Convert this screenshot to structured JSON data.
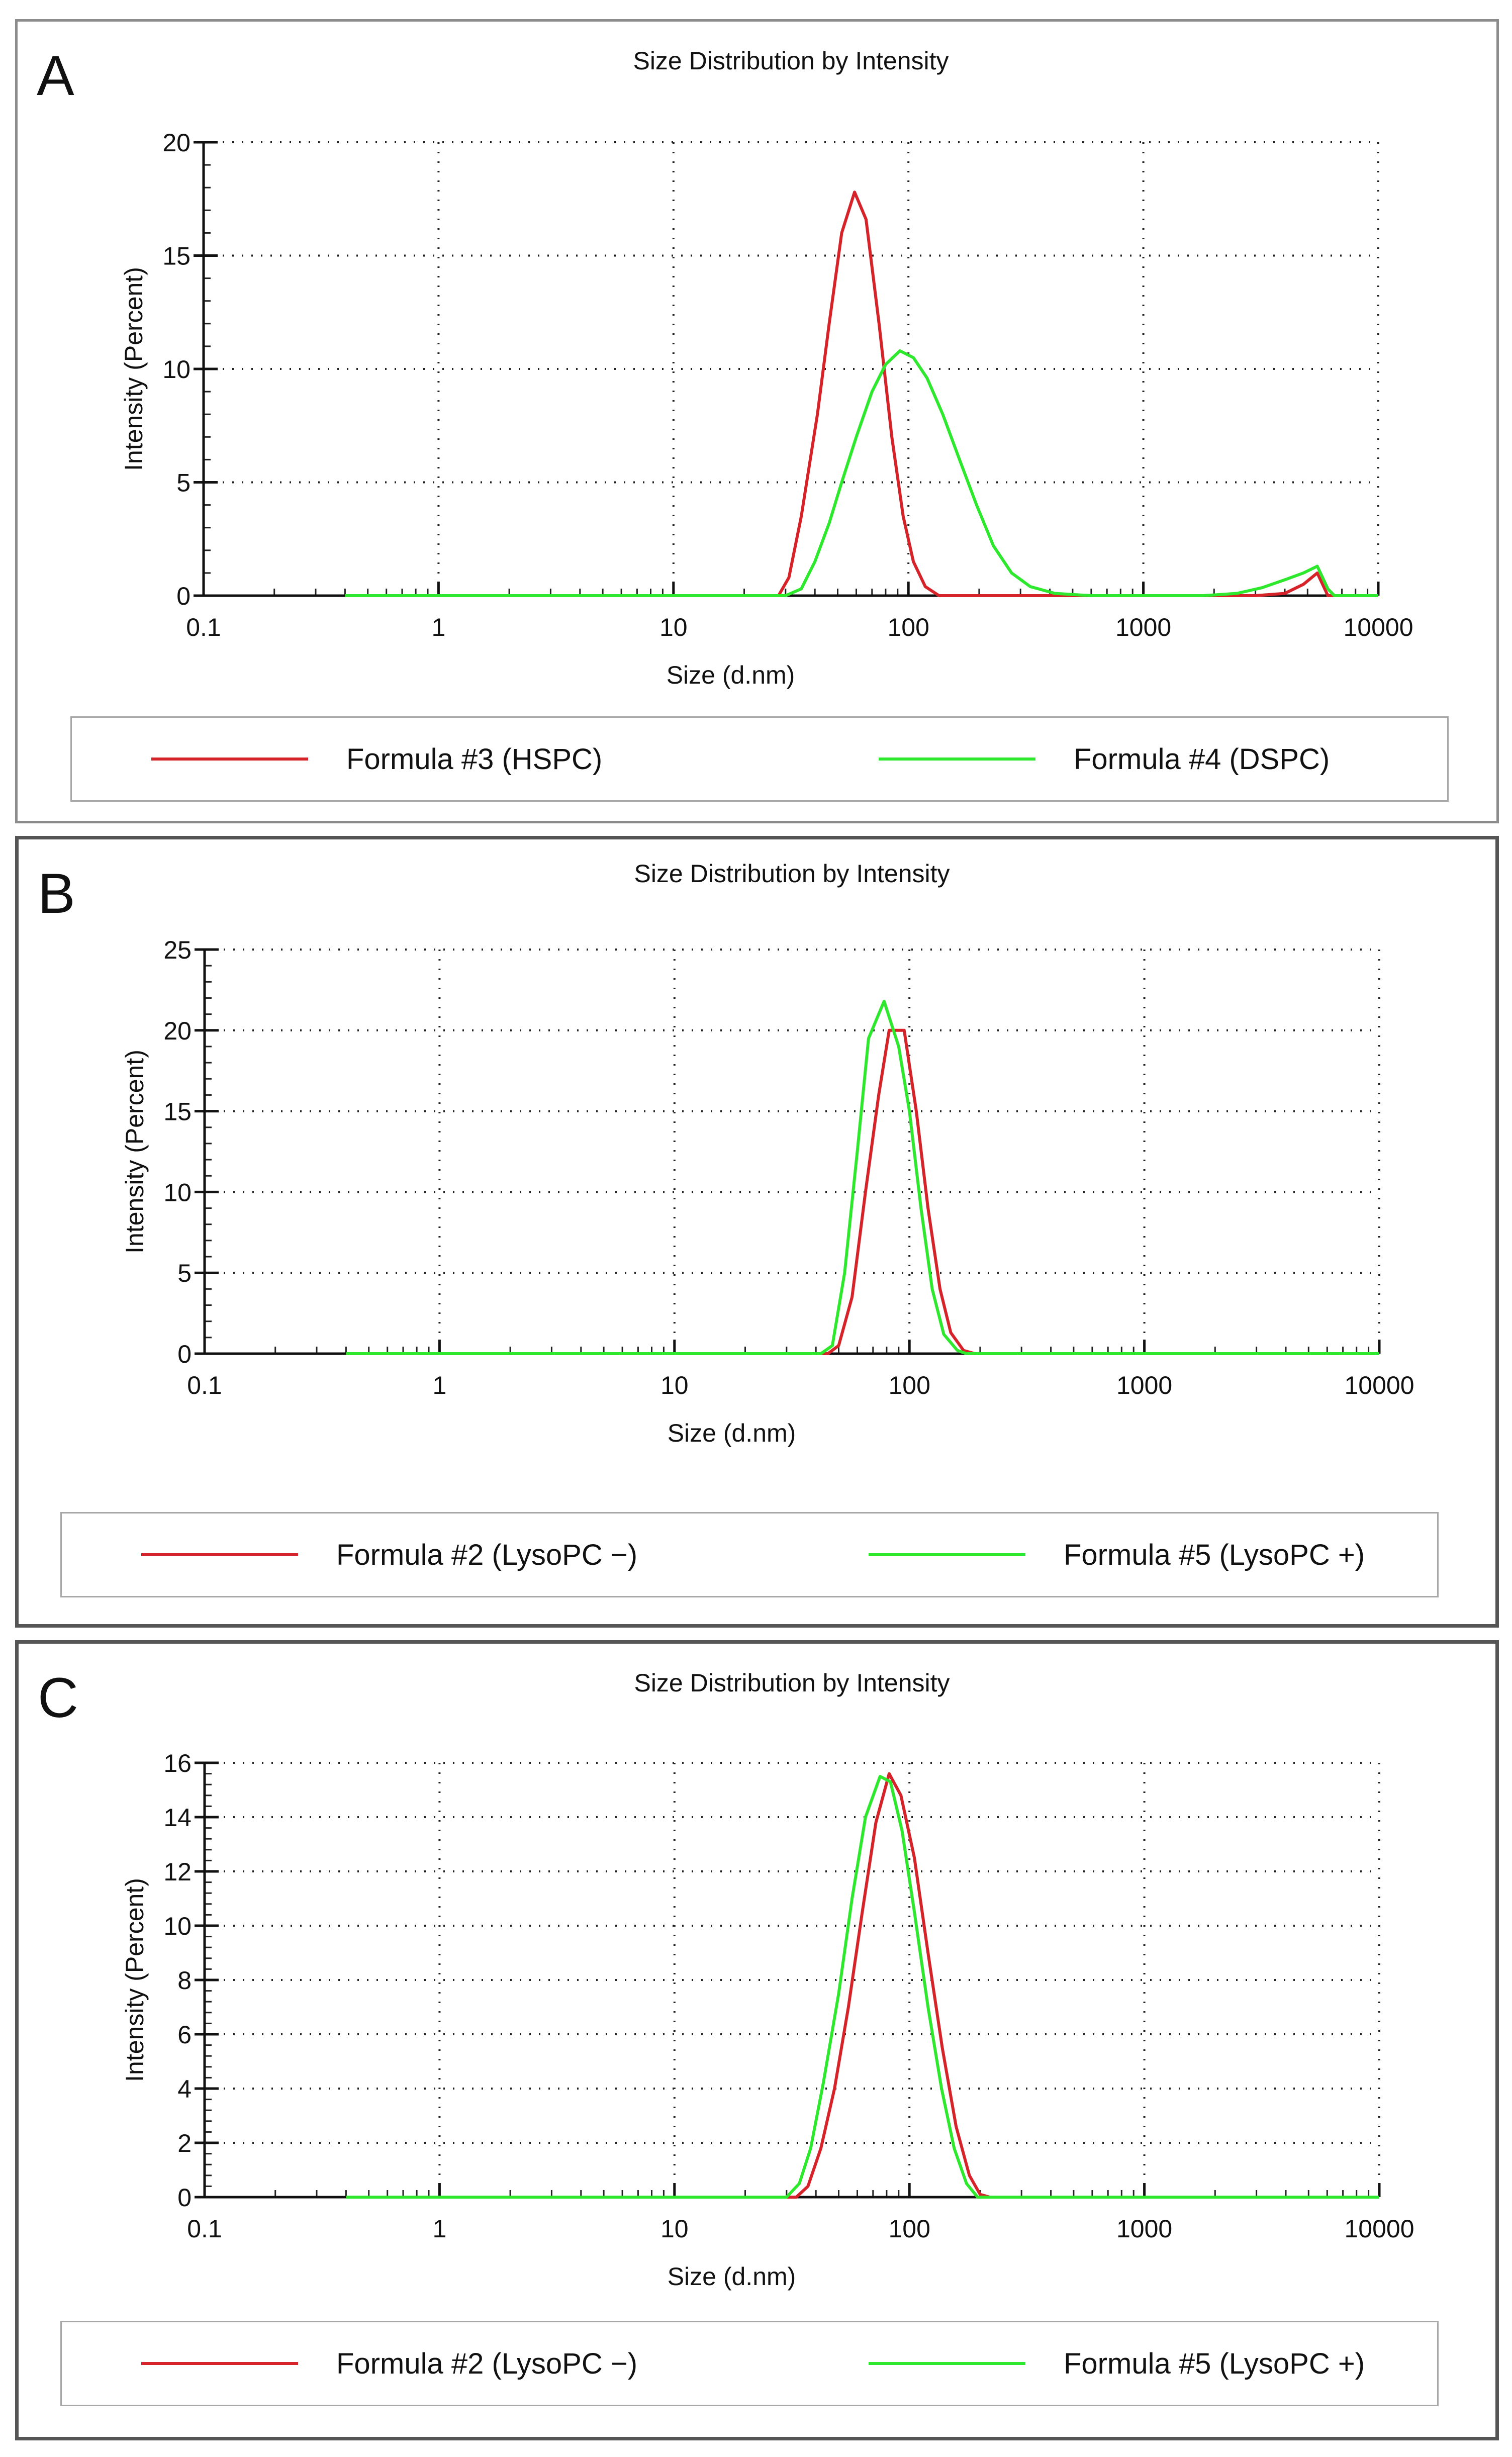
{
  "panels": [
    {
      "letter": "A"
    },
    {
      "letter": "B"
    },
    {
      "letter": "C"
    }
  ],
  "colors": {
    "series_red": "#d6232a",
    "series_green": "#2ee82e"
  },
  "chart_data": [
    {
      "type": "line",
      "title": "Size Distribution by Intensity",
      "xlabel": "Size (d.nm)",
      "ylabel": "Intensity (Percent)",
      "xscale": "log",
      "xlim": [
        0.1,
        10000
      ],
      "ylim": [
        0,
        20
      ],
      "x_ticks": [
        "0.1",
        "1",
        "10",
        "100",
        "1000",
        "10000"
      ],
      "y_ticks": [
        "0",
        "5",
        "10",
        "15",
        "20"
      ],
      "grid": true,
      "legend_position": "bottom",
      "series": [
        {
          "name": "Formula #3 (HSPC)",
          "color": "#d6232a",
          "points": [
            [
              0.4,
              0
            ],
            [
              28,
              0
            ],
            [
              31,
              0.8
            ],
            [
              35,
              3.5
            ],
            [
              41,
              8
            ],
            [
              46,
              12
            ],
            [
              52,
              16
            ],
            [
              59,
              17.8
            ],
            [
              66,
              16.6
            ],
            [
              75,
              12
            ],
            [
              85,
              7
            ],
            [
              95,
              3.5
            ],
            [
              105,
              1.5
            ],
            [
              118,
              0.4
            ],
            [
              135,
              0
            ],
            [
              1000,
              0
            ],
            [
              3000,
              0
            ],
            [
              4000,
              0.1
            ],
            [
              4800,
              0.5
            ],
            [
              5500,
              1.0
            ],
            [
              6100,
              0
            ],
            [
              10000,
              0
            ]
          ]
        },
        {
          "name": "Formula #4 (DSPC)",
          "color": "#2ee82e",
          "points": [
            [
              0.4,
              0
            ],
            [
              30,
              0
            ],
            [
              35,
              0.3
            ],
            [
              40,
              1.5
            ],
            [
              46,
              3.2
            ],
            [
              52,
              5
            ],
            [
              60,
              7
            ],
            [
              70,
              9
            ],
            [
              80,
              10.2
            ],
            [
              92,
              10.8
            ],
            [
              105,
              10.5
            ],
            [
              120,
              9.6
            ],
            [
              140,
              8
            ],
            [
              165,
              6
            ],
            [
              195,
              4
            ],
            [
              230,
              2.2
            ],
            [
              275,
              1
            ],
            [
              330,
              0.4
            ],
            [
              420,
              0.1
            ],
            [
              600,
              0
            ],
            [
              1800,
              0
            ],
            [
              2500,
              0.1
            ],
            [
              3200,
              0.35
            ],
            [
              4000,
              0.7
            ],
            [
              4800,
              1.0
            ],
            [
              5500,
              1.3
            ],
            [
              6100,
              0.3
            ],
            [
              6500,
              0
            ],
            [
              10000,
              0
            ]
          ]
        }
      ]
    },
    {
      "type": "line",
      "title": "Size Distribution by Intensity",
      "xlabel": "Size (d.nm)",
      "ylabel": "Intensity (Percent)",
      "xscale": "log",
      "xlim": [
        0.1,
        10000
      ],
      "ylim": [
        0,
        25
      ],
      "x_ticks": [
        "0.1",
        "1",
        "10",
        "100",
        "1000",
        "10000"
      ],
      "y_ticks": [
        "0",
        "5",
        "10",
        "15",
        "20",
        "25"
      ],
      "grid": true,
      "legend_position": "bottom",
      "series": [
        {
          "name": "Formula #2 (LysoPC −)",
          "color": "#d6232a",
          "points": [
            [
              0.4,
              0
            ],
            [
              45,
              0
            ],
            [
              50,
              0.5
            ],
            [
              57,
              3.5
            ],
            [
              65,
              10
            ],
            [
              74,
              16
            ],
            [
              82,
              20
            ],
            [
              95,
              20
            ],
            [
              107,
              15
            ],
            [
              120,
              9
            ],
            [
              135,
              4
            ],
            [
              150,
              1.3
            ],
            [
              170,
              0.2
            ],
            [
              190,
              0
            ],
            [
              10000,
              0
            ]
          ]
        },
        {
          "name": "Formula #5 (LysoPC +)",
          "color": "#2ee82e",
          "points": [
            [
              0.4,
              0
            ],
            [
              42,
              0
            ],
            [
              47,
              0.5
            ],
            [
              53,
              5
            ],
            [
              60,
              12.5
            ],
            [
              67,
              19.5
            ],
            [
              78,
              21.8
            ],
            [
              90,
              19
            ],
            [
              100,
              15
            ],
            [
              112,
              9
            ],
            [
              125,
              4
            ],
            [
              140,
              1.2
            ],
            [
              160,
              0.2
            ],
            [
              175,
              0
            ],
            [
              10000,
              0
            ]
          ]
        }
      ]
    },
    {
      "type": "line",
      "title": "Size Distribution by Intensity",
      "xlabel": "Size (d.nm)",
      "ylabel": "Intensity (Percent)",
      "xscale": "log",
      "xlim": [
        0.1,
        10000
      ],
      "ylim": [
        0,
        16
      ],
      "x_ticks": [
        "0.1",
        "1",
        "10",
        "100",
        "1000",
        "10000"
      ],
      "y_ticks": [
        "0",
        "2",
        "4",
        "6",
        "8",
        "10",
        "12",
        "14",
        "16"
      ],
      "grid": true,
      "legend_position": "bottom",
      "series": [
        {
          "name": "Formula #2 (LysoPC −)",
          "color": "#d6232a",
          "points": [
            [
              0.4,
              0
            ],
            [
              33,
              0
            ],
            [
              37,
              0.4
            ],
            [
              42,
              1.8
            ],
            [
              48,
              4
            ],
            [
              55,
              7
            ],
            [
              63,
              10.5
            ],
            [
              72,
              13.8
            ],
            [
              82,
              15.6
            ],
            [
              92,
              14.8
            ],
            [
              105,
              12.5
            ],
            [
              120,
              9
            ],
            [
              138,
              5.5
            ],
            [
              158,
              2.6
            ],
            [
              180,
              0.8
            ],
            [
              200,
              0.1
            ],
            [
              220,
              0
            ],
            [
              10000,
              0
            ]
          ]
        },
        {
          "name": "Formula #5 (LysoPC +)",
          "color": "#2ee82e",
          "points": [
            [
              0.4,
              0
            ],
            [
              30,
              0
            ],
            [
              34,
              0.5
            ],
            [
              38,
              1.8
            ],
            [
              43,
              4.2
            ],
            [
              50,
              7.5
            ],
            [
              57,
              11
            ],
            [
              65,
              14
            ],
            [
              75,
              15.5
            ],
            [
              83,
              15.3
            ],
            [
              93,
              13.5
            ],
            [
              105,
              10.5
            ],
            [
              120,
              7
            ],
            [
              137,
              4
            ],
            [
              155,
              1.8
            ],
            [
              175,
              0.5
            ],
            [
              195,
              0
            ],
            [
              10000,
              0
            ]
          ]
        }
      ]
    }
  ]
}
